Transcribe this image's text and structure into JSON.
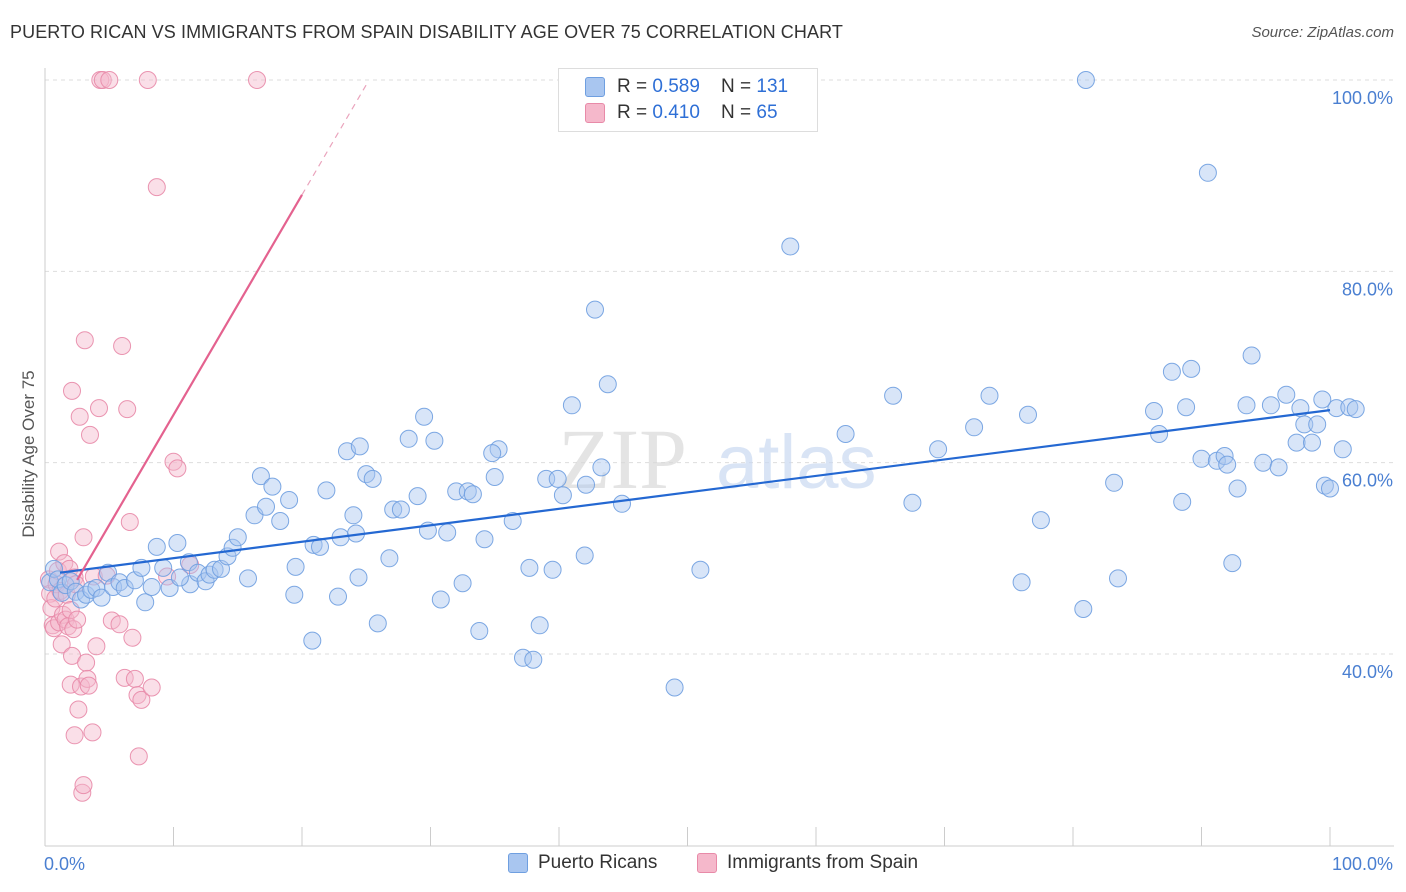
{
  "title": "PUERTO RICAN VS IMMIGRANTS FROM SPAIN DISABILITY AGE OVER 75 CORRELATION CHART",
  "source": "Source: ZipAtlas.com",
  "watermark": "ZIPatlas",
  "legend": {
    "r_label": "R = ",
    "n_label": "N = ",
    "rows": [
      {
        "r": "0.589",
        "n": "131"
      },
      {
        "r": "0.410",
        "n": " 65"
      }
    ]
  },
  "colors": {
    "blue_fill": "#a9c6f0",
    "blue_stroke": "#6f9fe0",
    "blue_line": "#2468d2",
    "pink_fill": "#f5b8cb",
    "pink_stroke": "#e88aa8",
    "pink_line": "#e4628f",
    "axis_text": "#4a7fd1",
    "grid": "#dddddd"
  },
  "chart_data": {
    "type": "scatter",
    "title": "PUERTO RICAN VS IMMIGRANTS FROM SPAIN DISABILITY AGE OVER 75 CORRELATION CHART",
    "xlabel": "",
    "ylabel": "Disability Age Over 75",
    "xlim": [
      0,
      100
    ],
    "ylim": [
      20,
      102
    ],
    "x_tick_labels": [
      "0.0%",
      "100.0%"
    ],
    "y_ticks": [
      40,
      60,
      80,
      100
    ],
    "y_tick_labels": [
      "40.0%",
      "60.0%",
      "80.0%",
      "100.0%"
    ],
    "grid": true,
    "legend_placement": "top-center",
    "series": [
      {
        "name": "Puerto Ricans",
        "r": 0.589,
        "n": 131,
        "trend": {
          "x": [
            0,
            100
          ],
          "y": [
            48.3,
            65.5
          ]
        },
        "points": [
          [
            0.4,
            47.5
          ],
          [
            0.7,
            48.9
          ],
          [
            1.0,
            47.8
          ],
          [
            1.3,
            46.4
          ],
          [
            1.6,
            47.2
          ],
          [
            2.0,
            47.6
          ],
          [
            2.4,
            46.5
          ],
          [
            2.8,
            45.7
          ],
          [
            3.2,
            46.2
          ],
          [
            3.6,
            46.7
          ],
          [
            4.0,
            46.9
          ],
          [
            4.4,
            45.9
          ],
          [
            4.9,
            48.5
          ],
          [
            5.3,
            47.0
          ],
          [
            5.8,
            47.5
          ],
          [
            6.2,
            46.9
          ],
          [
            7.0,
            47.7
          ],
          [
            7.5,
            49.0
          ],
          [
            7.8,
            45.4
          ],
          [
            8.3,
            47.0
          ],
          [
            8.7,
            51.2
          ],
          [
            9.2,
            49.0
          ],
          [
            9.7,
            46.9
          ],
          [
            10.3,
            51.6
          ],
          [
            11.2,
            49.6
          ],
          [
            11.3,
            47.3
          ],
          [
            11.9,
            48.5
          ],
          [
            12.5,
            47.6
          ],
          [
            12.8,
            48.3
          ],
          [
            13.2,
            48.8
          ],
          [
            13.7,
            48.9
          ],
          [
            14.2,
            50.2
          ],
          [
            14.6,
            51.1
          ],
          [
            15.0,
            52.2
          ],
          [
            15.8,
            47.9
          ],
          [
            16.3,
            54.5
          ],
          [
            16.8,
            58.6
          ],
          [
            17.2,
            55.4
          ],
          [
            17.7,
            57.5
          ],
          [
            18.3,
            53.9
          ],
          [
            19.0,
            56.1
          ],
          [
            19.4,
            46.2
          ],
          [
            20.8,
            41.4
          ],
          [
            20.9,
            51.4
          ],
          [
            21.4,
            51.2
          ],
          [
            21.9,
            57.1
          ],
          [
            22.8,
            46.0
          ],
          [
            23.0,
            52.2
          ],
          [
            23.5,
            61.2
          ],
          [
            24.0,
            54.5
          ],
          [
            24.4,
            48.0
          ],
          [
            24.5,
            61.7
          ],
          [
            25.0,
            58.8
          ],
          [
            25.5,
            58.3
          ],
          [
            25.9,
            43.2
          ],
          [
            26.8,
            50.0
          ],
          [
            27.1,
            55.1
          ],
          [
            27.7,
            55.1
          ],
          [
            28.3,
            62.5
          ],
          [
            29.0,
            56.5
          ],
          [
            29.5,
            64.8
          ],
          [
            29.8,
            52.9
          ],
          [
            30.3,
            62.3
          ],
          [
            30.8,
            45.7
          ],
          [
            31.3,
            52.7
          ],
          [
            32.0,
            57.0
          ],
          [
            32.5,
            47.4
          ],
          [
            32.9,
            57.0
          ],
          [
            33.3,
            56.7
          ],
          [
            33.8,
            42.4
          ],
          [
            34.2,
            52.0
          ],
          [
            35.0,
            58.5
          ],
          [
            35.3,
            61.4
          ],
          [
            36.4,
            53.9
          ],
          [
            37.2,
            39.6
          ],
          [
            37.7,
            49.0
          ],
          [
            38.0,
            39.4
          ],
          [
            38.5,
            43.0
          ],
          [
            39.0,
            58.3
          ],
          [
            39.5,
            48.8
          ],
          [
            39.9,
            58.3
          ],
          [
            40.3,
            56.6
          ],
          [
            41.0,
            66.0
          ],
          [
            42.0,
            50.3
          ],
          [
            42.1,
            57.7
          ],
          [
            42.8,
            76.0
          ],
          [
            43.3,
            59.5
          ],
          [
            43.8,
            68.2
          ],
          [
            44.9,
            55.7
          ],
          [
            49.0,
            36.5
          ],
          [
            51.0,
            48.8
          ],
          [
            58.0,
            82.6
          ],
          [
            62.3,
            63.0
          ],
          [
            66.0,
            67.0
          ],
          [
            67.5,
            55.8
          ],
          [
            69.5,
            61.4
          ],
          [
            72.3,
            63.7
          ],
          [
            73.5,
            67.0
          ],
          [
            76.0,
            47.5
          ],
          [
            76.5,
            65.0
          ],
          [
            77.5,
            54.0
          ],
          [
            80.8,
            44.7
          ],
          [
            81.0,
            100.0
          ],
          [
            83.2,
            57.9
          ],
          [
            83.5,
            47.9
          ],
          [
            86.3,
            65.4
          ],
          [
            86.7,
            63.0
          ],
          [
            87.7,
            69.5
          ],
          [
            88.5,
            55.9
          ],
          [
            88.8,
            65.8
          ],
          [
            89.2,
            69.8
          ],
          [
            90.0,
            60.4
          ],
          [
            90.5,
            90.3
          ],
          [
            91.2,
            60.2
          ],
          [
            91.8,
            60.7
          ],
          [
            92.4,
            49.5
          ],
          [
            92.8,
            57.3
          ],
          [
            93.5,
            66.0
          ],
          [
            93.9,
            71.2
          ],
          [
            94.8,
            60.0
          ],
          [
            95.4,
            66.0
          ],
          [
            96.0,
            59.5
          ],
          [
            96.6,
            67.1
          ],
          [
            97.4,
            62.1
          ],
          [
            97.7,
            65.7
          ],
          [
            98.0,
            64.0
          ],
          [
            98.6,
            62.1
          ],
          [
            99.0,
            64.0
          ],
          [
            99.6,
            57.6
          ],
          [
            100.0,
            57.3
          ],
          [
            100.5,
            65.7
          ],
          [
            101.0,
            61.4
          ],
          [
            101.5,
            65.8
          ],
          [
            102.0,
            65.6
          ],
          [
            99.4,
            66.6
          ],
          [
            92.0,
            59.8
          ],
          [
            34.8,
            61.0
          ],
          [
            24.2,
            52.6
          ],
          [
            19.5,
            49.1
          ],
          [
            10.5,
            48.0
          ]
        ]
      },
      {
        "name": "Immigrants from Spain",
        "r": 0.41,
        "n": 65,
        "trend": {
          "x": [
            0,
            20
          ],
          "y": [
            42.0,
            88.0
          ]
        },
        "points": [
          [
            0.3,
            47.8
          ],
          [
            0.4,
            46.3
          ],
          [
            0.5,
            44.8
          ],
          [
            0.6,
            43.0
          ],
          [
            0.7,
            42.7
          ],
          [
            0.8,
            45.8
          ],
          [
            0.9,
            47.3
          ],
          [
            1.0,
            48.7
          ],
          [
            1.1,
            50.7
          ],
          [
            1.1,
            43.3
          ],
          [
            1.2,
            46.6
          ],
          [
            1.3,
            41.0
          ],
          [
            1.4,
            44.1
          ],
          [
            1.5,
            49.5
          ],
          [
            1.6,
            43.6
          ],
          [
            1.7,
            46.2
          ],
          [
            1.8,
            42.9
          ],
          [
            1.9,
            48.9
          ],
          [
            2.0,
            44.6
          ],
          [
            2.0,
            36.8
          ],
          [
            2.1,
            39.8
          ],
          [
            2.2,
            42.6
          ],
          [
            2.3,
            31.5
          ],
          [
            2.3,
            48.0
          ],
          [
            2.4,
            47.3
          ],
          [
            2.5,
            43.6
          ],
          [
            2.6,
            34.2
          ],
          [
            2.7,
            64.8
          ],
          [
            2.8,
            36.6
          ],
          [
            2.9,
            25.5
          ],
          [
            3.0,
            52.2
          ],
          [
            3.0,
            26.3
          ],
          [
            3.1,
            72.8
          ],
          [
            3.2,
            39.1
          ],
          [
            3.3,
            37.4
          ],
          [
            3.4,
            36.7
          ],
          [
            3.5,
            62.9
          ],
          [
            3.7,
            31.8
          ],
          [
            3.8,
            48.1
          ],
          [
            4.0,
            40.8
          ],
          [
            4.2,
            65.7
          ],
          [
            4.3,
            100.0
          ],
          [
            4.5,
            100.0
          ],
          [
            4.8,
            48.2
          ],
          [
            5.0,
            100.0
          ],
          [
            5.2,
            43.5
          ],
          [
            5.8,
            43.1
          ],
          [
            6.0,
            72.2
          ],
          [
            6.2,
            37.5
          ],
          [
            6.4,
            65.6
          ],
          [
            6.6,
            53.8
          ],
          [
            6.8,
            41.7
          ],
          [
            7.0,
            37.4
          ],
          [
            7.2,
            35.7
          ],
          [
            7.3,
            29.3
          ],
          [
            7.5,
            35.2
          ],
          [
            8.0,
            100.0
          ],
          [
            8.3,
            36.5
          ],
          [
            8.7,
            88.8
          ],
          [
            9.5,
            48.1
          ],
          [
            10.0,
            60.1
          ],
          [
            10.3,
            59.4
          ],
          [
            11.3,
            49.3
          ],
          [
            16.5,
            100.0
          ],
          [
            2.1,
            67.5
          ]
        ]
      }
    ]
  }
}
